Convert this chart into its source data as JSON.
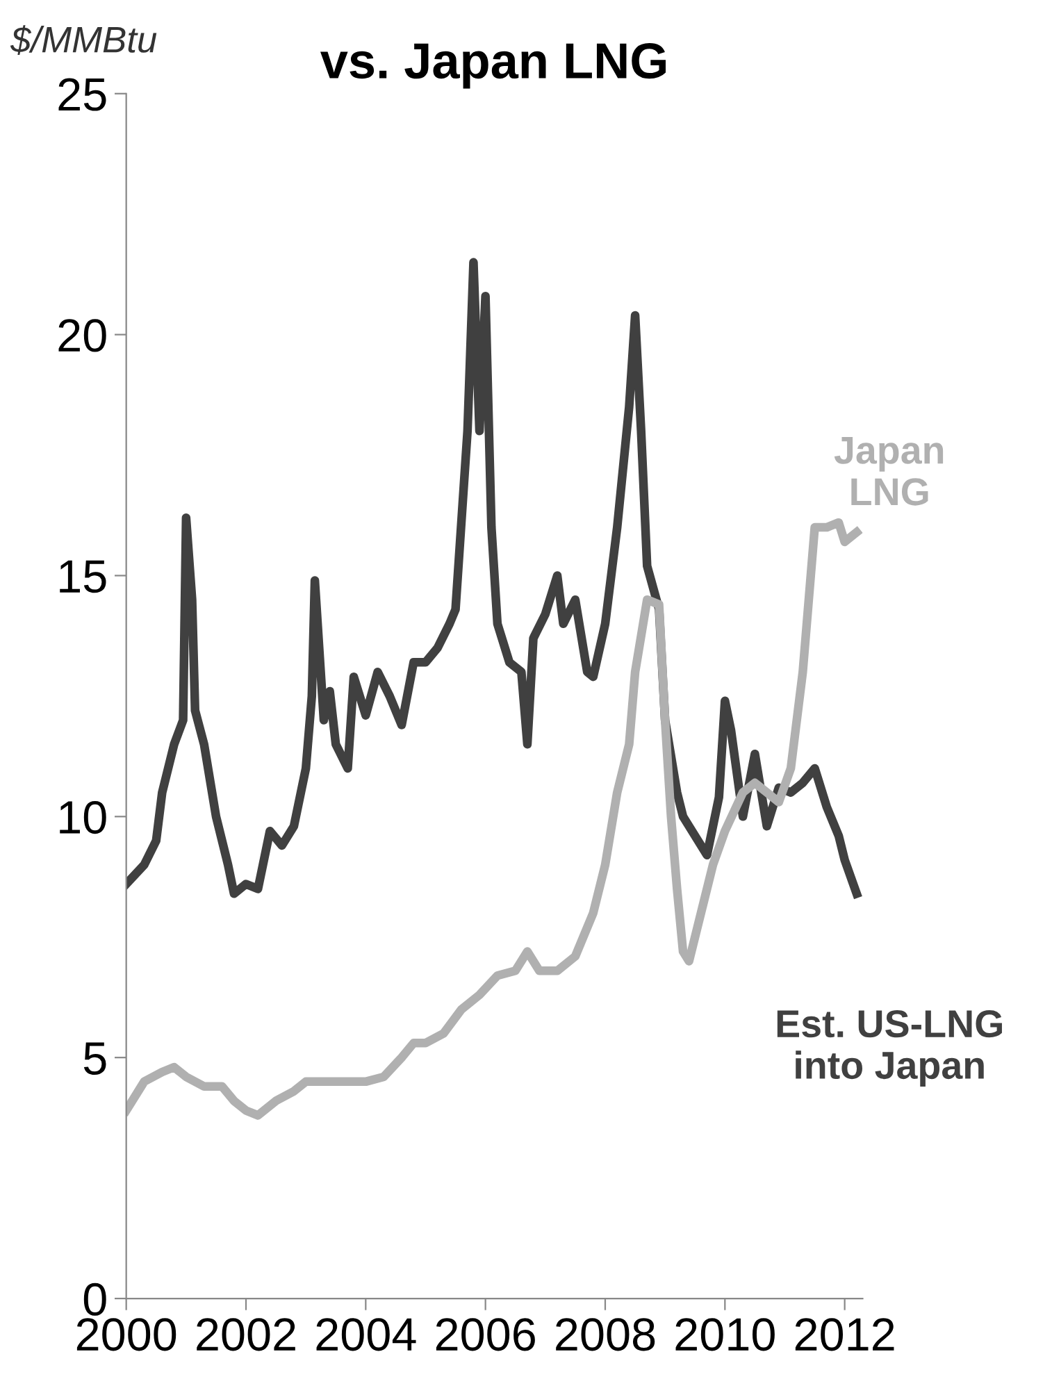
{
  "chart_data": {
    "type": "line",
    "title": "vs. Japan LNG",
    "ylabel": "$/MMBtu",
    "xlim": [
      2000,
      2012.3
    ],
    "ylim": [
      0,
      25
    ],
    "xticks": [
      2000,
      2002,
      2004,
      2006,
      2008,
      2010,
      2012
    ],
    "yticks": [
      0,
      5,
      10,
      15,
      20,
      25
    ],
    "grid": false,
    "legend": false,
    "marker": "none",
    "line_style": "solid",
    "series": [
      {
        "name": "Est. US-LNG\ninto Japan",
        "color": "#404040",
        "x": [
          2000.0,
          2000.3,
          2000.5,
          2000.6,
          2000.8,
          2000.95,
          2001.0,
          2001.1,
          2001.15,
          2001.3,
          2001.5,
          2001.7,
          2001.8,
          2002.0,
          2002.2,
          2002.4,
          2002.6,
          2002.8,
          2003.0,
          2003.1,
          2003.15,
          2003.3,
          2003.4,
          2003.5,
          2003.7,
          2003.8,
          2004.0,
          2004.2,
          2004.4,
          2004.6,
          2004.8,
          2005.0,
          2005.2,
          2005.4,
          2005.5,
          2005.7,
          2005.8,
          2005.9,
          2006.0,
          2006.1,
          2006.2,
          2006.4,
          2006.6,
          2006.7,
          2006.8,
          2007.0,
          2007.2,
          2007.3,
          2007.5,
          2007.7,
          2007.8,
          2008.0,
          2008.2,
          2008.4,
          2008.5,
          2008.6,
          2008.7,
          2008.9,
          2009.0,
          2009.2,
          2009.3,
          2009.5,
          2009.7,
          2009.9,
          2010.0,
          2010.1,
          2010.3,
          2010.5,
          2010.7,
          2010.9,
          2011.1,
          2011.3,
          2011.5,
          2011.7,
          2011.9,
          2012.0,
          2012.2
        ],
        "values": [
          8.6,
          9.0,
          9.5,
          10.5,
          11.5,
          12.0,
          16.2,
          14.5,
          12.2,
          11.5,
          10.0,
          9.0,
          8.4,
          8.6,
          8.5,
          9.7,
          9.4,
          9.8,
          11.0,
          12.5,
          14.9,
          12.0,
          12.6,
          11.5,
          11.0,
          12.9,
          12.1,
          13.0,
          12.5,
          11.9,
          13.2,
          13.2,
          13.5,
          14.0,
          14.3,
          18.0,
          21.5,
          18.0,
          20.8,
          16.0,
          14.0,
          13.2,
          13.0,
          11.5,
          13.7,
          14.2,
          15.0,
          14.0,
          14.5,
          13.0,
          12.9,
          14.0,
          16.0,
          18.5,
          20.4,
          18.0,
          15.2,
          14.3,
          12.0,
          10.5,
          10.0,
          9.6,
          9.2,
          10.4,
          12.4,
          11.8,
          10.0,
          11.3,
          9.8,
          10.6,
          10.5,
          10.7,
          11.0,
          10.2,
          9.6,
          9.1,
          8.4
        ]
      },
      {
        "name": "Japan\nLNG",
        "color": "#b0b0b0",
        "x": [
          2000.0,
          2000.3,
          2000.6,
          2000.8,
          2001.0,
          2001.3,
          2001.6,
          2001.8,
          2002.0,
          2002.2,
          2002.5,
          2002.8,
          2003.0,
          2003.3,
          2003.6,
          2004.0,
          2004.3,
          2004.6,
          2004.8,
          2005.0,
          2005.3,
          2005.6,
          2005.9,
          2006.2,
          2006.5,
          2006.7,
          2006.9,
          2007.2,
          2007.5,
          2007.8,
          2008.0,
          2008.2,
          2008.4,
          2008.5,
          2008.7,
          2008.9,
          2009.0,
          2009.1,
          2009.2,
          2009.3,
          2009.4,
          2009.6,
          2009.8,
          2010.0,
          2010.3,
          2010.5,
          2010.7,
          2010.9,
          2011.1,
          2011.3,
          2011.5,
          2011.7,
          2011.9,
          2012.0,
          2012.2
        ],
        "values": [
          3.9,
          4.5,
          4.7,
          4.8,
          4.6,
          4.4,
          4.4,
          4.1,
          3.9,
          3.8,
          4.1,
          4.3,
          4.5,
          4.5,
          4.5,
          4.5,
          4.6,
          5.0,
          5.3,
          5.3,
          5.5,
          6.0,
          6.3,
          6.7,
          6.8,
          7.2,
          6.8,
          6.8,
          7.1,
          8.0,
          9.0,
          10.5,
          11.5,
          13.0,
          14.5,
          14.4,
          12.0,
          10.0,
          8.5,
          7.2,
          7.0,
          8.0,
          9.0,
          9.7,
          10.5,
          10.7,
          10.5,
          10.3,
          11.0,
          13.0,
          16.0,
          16.0,
          16.1,
          15.7,
          15.9
        ]
      }
    ]
  }
}
